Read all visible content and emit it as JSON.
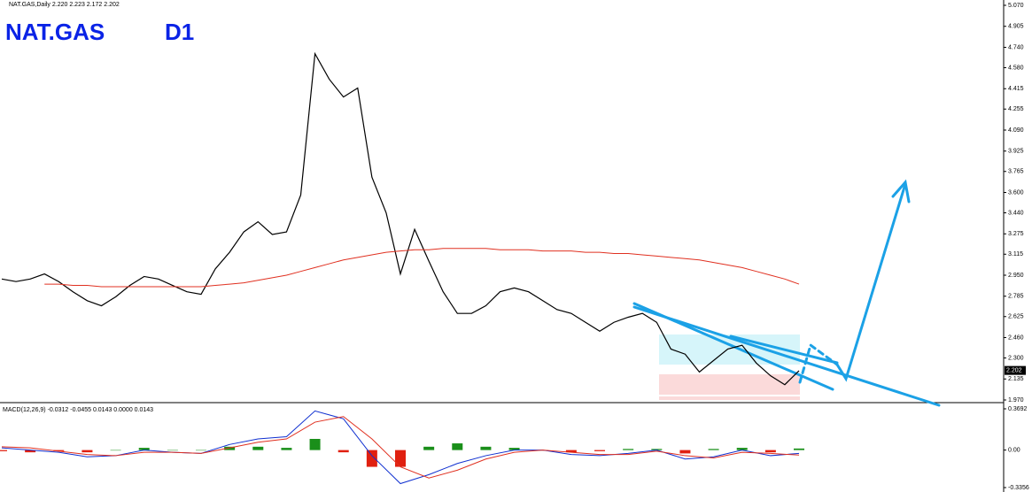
{
  "chart_data": [
    {
      "type": "line",
      "title": "NAT.GAS,Daily  2.220 2.223 2.172 2.202",
      "annotations": [
        "NAT.GAS",
        "D1"
      ],
      "ylim": [
        1.97,
        5.07
      ],
      "yticks": [
        {
          "value": 5.07,
          "label": "5.070"
        },
        {
          "value": 4.905,
          "label": "4.905"
        },
        {
          "value": 4.74,
          "label": "4.740"
        },
        {
          "value": 4.58,
          "label": "4.580"
        },
        {
          "value": 4.415,
          "label": "4.415"
        },
        {
          "value": 4.255,
          "label": "4.255"
        },
        {
          "value": 4.09,
          "label": "4.090"
        },
        {
          "value": 3.925,
          "label": "3.925"
        },
        {
          "value": 3.765,
          "label": "3.765"
        },
        {
          "value": 3.6,
          "label": "3.600"
        },
        {
          "value": 3.44,
          "label": "3.440"
        },
        {
          "value": 3.275,
          "label": "3.275"
        },
        {
          "value": 3.115,
          "label": "3.115"
        },
        {
          "value": 2.95,
          "label": "2.950"
        },
        {
          "value": 2.785,
          "label": "2.785"
        },
        {
          "value": 2.625,
          "label": "2.625"
        },
        {
          "value": 2.46,
          "label": "2.460"
        },
        {
          "value": 2.3,
          "label": "2.300"
        },
        {
          "value": 2.135,
          "label": "2.135"
        },
        {
          "value": 1.97,
          "label": "1.970"
        }
      ],
      "last_value": 2.202,
      "series": [
        {
          "color": "#000000",
          "values": [
            2.92,
            2.9,
            2.92,
            2.96,
            2.9,
            2.82,
            2.75,
            2.71,
            2.78,
            2.87,
            2.94,
            2.92,
            2.87,
            2.82,
            2.8,
            3.0,
            3.13,
            3.29,
            3.37,
            3.27,
            3.29,
            3.58,
            4.69,
            4.49,
            4.35,
            4.42,
            3.72,
            3.44,
            2.96,
            3.31,
            3.06,
            2.82,
            2.65,
            2.65,
            2.71,
            2.82,
            2.85,
            2.82,
            2.75,
            2.68,
            2.65,
            2.58,
            2.51,
            2.58,
            2.62,
            2.65,
            2.58,
            2.37,
            2.33,
            2.19,
            2.28,
            2.37,
            2.4,
            2.26,
            2.16,
            2.09,
            2.2
          ]
        },
        {
          "color": "#e03020",
          "values": [
            null,
            null,
            null,
            2.88,
            2.88,
            2.87,
            2.87,
            2.86,
            2.86,
            2.86,
            2.86,
            2.86,
            2.86,
            2.86,
            2.86,
            2.87,
            2.88,
            2.89,
            2.91,
            2.93,
            2.95,
            2.98,
            3.01,
            3.04,
            3.07,
            3.09,
            3.11,
            3.13,
            3.14,
            3.15,
            3.15,
            3.16,
            3.16,
            3.16,
            3.16,
            3.15,
            3.15,
            3.15,
            3.14,
            3.14,
            3.14,
            3.13,
            3.13,
            3.12,
            3.12,
            3.11,
            3.1,
            3.09,
            3.08,
            3.07,
            3.05,
            3.03,
            3.01,
            2.98,
            2.95,
            2.92,
            2.88
          ]
        }
      ]
    },
    {
      "type": "macd",
      "title": "MACD(12,26,9) -0.0312 -0.0455 0.0143 0.0000 0.0143",
      "ylim": [
        -0.3356,
        0.3692
      ],
      "yticks": [
        0.3692,
        {
          "value": 0,
          "label": "0.00"
        },
        -0.3356
      ],
      "histogram": {
        "up_color": "#1a8f1a",
        "down_color": "#e02010",
        "values": [
          -0.01,
          -0.02,
          -0.01,
          -0.02,
          0,
          0.02,
          0,
          0,
          0.03,
          0.03,
          0.02,
          0.1,
          -0.02,
          -0.15,
          -0.15,
          0.03,
          0.06,
          0.03,
          0.02,
          0,
          -0.02,
          -0.01,
          0.01,
          0.01,
          -0.03,
          0.01,
          0.02,
          -0.02,
          0.014
        ]
      },
      "series": [
        {
          "color": "#1030d0",
          "values": [
            0.02,
            0,
            -0.02,
            -0.06,
            -0.05,
            0,
            -0.02,
            -0.03,
            0.05,
            0.1,
            0.12,
            0.35,
            0.28,
            -0.05,
            -0.3,
            -0.22,
            -0.12,
            -0.05,
            0,
            0,
            -0.04,
            -0.05,
            -0.03,
            0,
            -0.08,
            -0.06,
            0,
            -0.05,
            -0.03
          ]
        },
        {
          "color": "#e03020",
          "values": [
            0.03,
            0.02,
            -0.01,
            -0.04,
            -0.05,
            -0.02,
            -0.02,
            -0.03,
            0.02,
            0.07,
            0.1,
            0.25,
            0.3,
            0.1,
            -0.15,
            -0.25,
            -0.18,
            -0.08,
            -0.02,
            0,
            -0.02,
            -0.04,
            -0.04,
            -0.01,
            -0.05,
            -0.07,
            -0.02,
            -0.03,
            -0.045
          ]
        }
      ]
    }
  ]
}
